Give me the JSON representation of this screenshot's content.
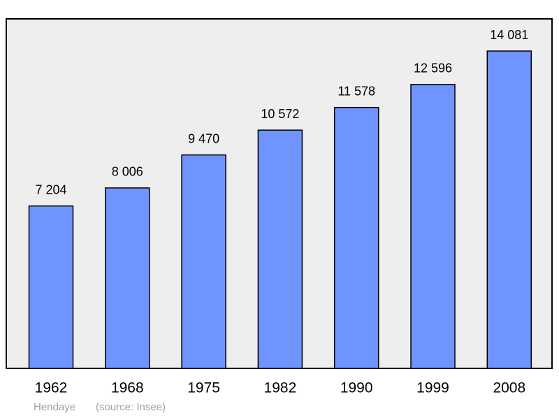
{
  "chart_data": {
    "type": "bar",
    "categories": [
      "1962",
      "1968",
      "1975",
      "1982",
      "1990",
      "1999",
      "2008"
    ],
    "values": [
      7204,
      8006,
      9470,
      10572,
      11578,
      12596,
      14081
    ],
    "value_labels": [
      "7 204",
      "8 006",
      "9 470",
      "10 572",
      "11 578",
      "12 596",
      "14 081"
    ],
    "color": "#7094ff",
    "caption": "Hendaye",
    "source": "(source: Insee)"
  }
}
